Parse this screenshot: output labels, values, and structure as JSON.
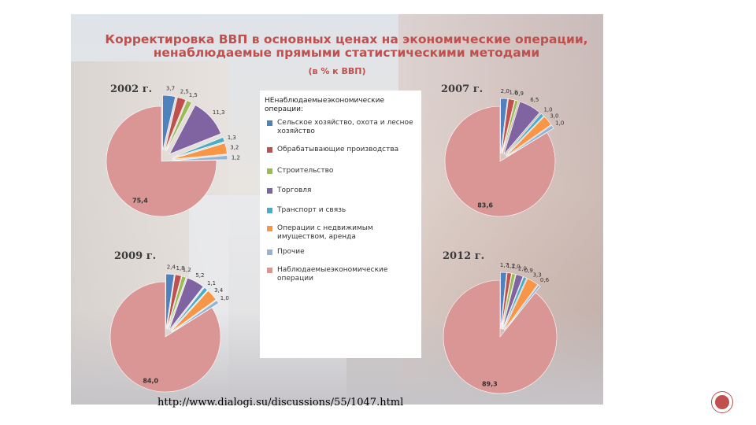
{
  "title_line1": "Корректировка ВВП в основных ценах на экономические операции,",
  "title_line2": "ненаблюдаемые прямыми статистическими методами",
  "subtitle": "(в % к ВВП)",
  "url": "http://www.dialogi.su/discussions/55/1047.html",
  "legend": {
    "title": "НЕнаблюдаемыеэкономические операции:",
    "items": [
      {
        "label": "Сельское хозяйство, охота и лесное хозяйство",
        "color": "#4f81bd"
      },
      {
        "label": "Обрабатывающие производства",
        "color": "#c0504d"
      },
      {
        "label": "Строительство",
        "color": "#9bbb59"
      },
      {
        "label": "Торговля",
        "color": "#8064a2"
      },
      {
        "label": "Транспорт и связь",
        "color": "#4bacc6"
      },
      {
        "label": "Операции с недвижимым имуществом, аренда",
        "color": "#f79646"
      },
      {
        "label": "Прочие",
        "color": "#95b3d7"
      },
      {
        "label": "Наблюдаемыеэкономические операции",
        "color": "#d99694"
      }
    ]
  },
  "chart_data": [
    {
      "type": "pie",
      "title": "2002 г.",
      "values": [
        3.7,
        2.5,
        1.5,
        11.3,
        1.3,
        3.2,
        1.2,
        75.4
      ],
      "labels": [
        "3,7",
        "2,5",
        "1,5",
        "11,3",
        "1,3",
        "3,2",
        "1,2",
        "75,4"
      ]
    },
    {
      "type": "pie",
      "title": "2007 г.",
      "values": [
        2.0,
        1.8,
        0.9,
        6.5,
        1.0,
        3.0,
        1.0,
        83.6
      ],
      "labels": [
        "2,0",
        "1,8",
        "0,9",
        "6,5",
        "1,0",
        "3,0",
        "1,0",
        "83,6"
      ]
    },
    {
      "type": "pie",
      "title": "2009 г.",
      "values": [
        2.4,
        1.8,
        1.2,
        5.2,
        1.1,
        3.4,
        1.0,
        84.0
      ],
      "labels": [
        "2,4",
        "1,8",
        "1,2",
        "5,2",
        "1,1",
        "3,4",
        "1,0",
        "84,0"
      ]
    },
    {
      "type": "pie",
      "title": "2012 г.",
      "values": [
        1.7,
        1.2,
        1.0,
        2.0,
        0.9,
        3.3,
        0.6,
        89.3
      ],
      "labels": [
        "1,7",
        "1,2",
        "1,0",
        "2,0",
        "0,9",
        "3,3",
        "0,6",
        "89,3"
      ]
    }
  ]
}
